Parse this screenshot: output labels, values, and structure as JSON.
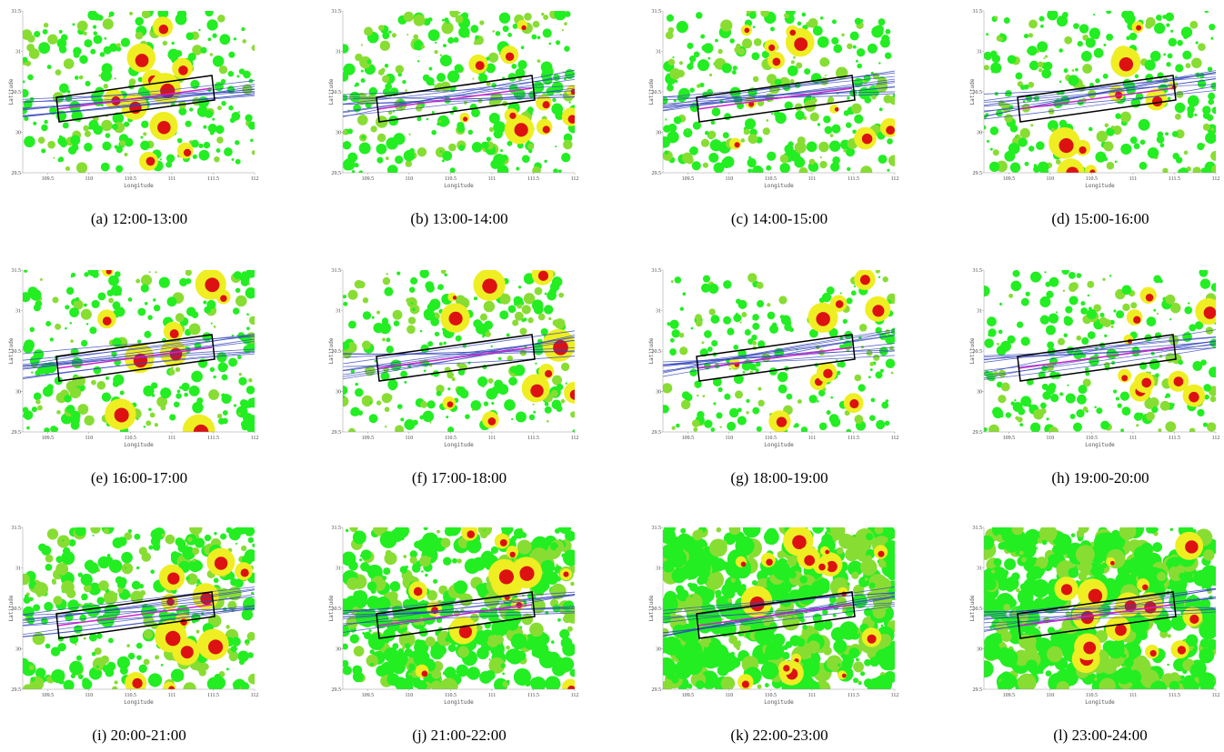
{
  "axes": {
    "xlabel": "Longitude",
    "ylabel": "Latitude",
    "xlim": [
      109.2,
      112
    ],
    "ylim": [
      29.5,
      31.5
    ],
    "xticks": [
      109.5,
      110,
      110.5,
      111,
      111.5,
      112
    ],
    "yticks": [
      29.5,
      30,
      30.5,
      31,
      31.5
    ]
  },
  "panels": [
    {
      "caption": "(a) 12:00-13:00"
    },
    {
      "caption": "(b) 13:00-14:00"
    },
    {
      "caption": "(c) 14:00-15:00"
    },
    {
      "caption": "(d) 15:00-16:00"
    },
    {
      "caption": "(e) 16:00-17:00"
    },
    {
      "caption": "(f) 17:00-18:00"
    },
    {
      "caption": "(g) 18:00-19:00"
    },
    {
      "caption": "(h) 19:00-20:00"
    },
    {
      "caption": "(i) 20:00-21:00"
    },
    {
      "caption": "(j) 21:00-22:00"
    },
    {
      "caption": "(k) 22:00-23:00"
    },
    {
      "caption": "(l) 23:00-24:00"
    }
  ]
}
